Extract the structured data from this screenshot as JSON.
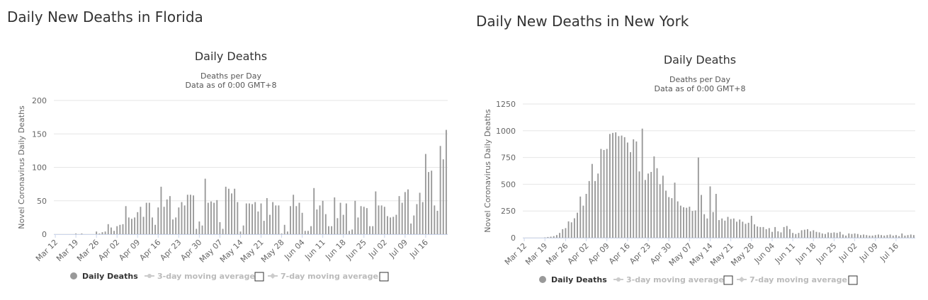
{
  "panels": [
    {
      "heading": "Daily New Deaths in Florida",
      "chart_data": {
        "type": "bar",
        "title": "Daily Deaths",
        "subtitle": [
          "Deaths per Day",
          "Data as of 0:00 GMT+8"
        ],
        "ylabel": "Novel Coronavirus Daily Deaths",
        "xlabel": "",
        "ylim": [
          0,
          200
        ],
        "yticks": [
          0,
          50,
          100,
          150,
          200
        ],
        "start_date": "2020-03-12",
        "xtick_labels": [
          "Mar 12",
          "Mar 19",
          "Mar 26",
          "Apr 02",
          "Apr 09",
          "Apr 16",
          "Apr 23",
          "Apr 30",
          "May 07",
          "May 14",
          "May 21",
          "May 28",
          "Jun 04",
          "Jun 11",
          "Jun 18",
          "Jun 25",
          "Jul 02",
          "Jul 09",
          "Jul 16"
        ],
        "grid": true,
        "series": [
          {
            "name": "Daily Deaths",
            "color": "#999999",
            "values": [
              0,
              0,
              0,
              0,
              0,
              0,
              0,
              1,
              0,
              1,
              0,
              0,
              0,
              0,
              4,
              1,
              3,
              4,
              15,
              10,
              5,
              12,
              14,
              15,
              42,
              25,
              23,
              25,
              33,
              41,
              26,
              47,
              47,
              25,
              14,
              40,
              71,
              41,
              52,
              57,
              22,
              25,
              40,
              48,
              43,
              59,
              59,
              58,
              8,
              19,
              13,
              83,
              47,
              49,
              47,
              51,
              18,
              8,
              71,
              68,
              61,
              68,
              48,
              4,
              13,
              46,
              46,
              45,
              48,
              34,
              46,
              20,
              54,
              29,
              48,
              43,
              43,
              1,
              14,
              4,
              42,
              59,
              42,
              47,
              32,
              5,
              5,
              12,
              69,
              37,
              43,
              50,
              30,
              12,
              12,
              55,
              24,
              47,
              29,
              46,
              5,
              7,
              50,
              25,
              42,
              41,
              39,
              12,
              12,
              64,
              43,
              43,
              41,
              27,
              25,
              26,
              29,
              57,
              47,
              63,
              67,
              16,
              28,
              45,
              62,
              48,
              120,
              93,
              95,
              43,
              35,
              132,
              112,
              156
            ]
          },
          {
            "name": "3-day moving average",
            "color": "#cccccc",
            "visible": false
          },
          {
            "name": "7-day moving average",
            "color": "#cccccc",
            "visible": false
          }
        ]
      }
    },
    {
      "heading": "Daily New Deaths in New York",
      "chart_data": {
        "type": "bar",
        "title": "Daily Deaths",
        "subtitle": [
          "Deaths per Day",
          "Data as of 0:00 GMT+8"
        ],
        "ylabel": "Novel Coronavirus Daily Deaths",
        "xlabel": "",
        "ylim": [
          0,
          1250
        ],
        "yticks": [
          0,
          250,
          500,
          750,
          1000,
          1250
        ],
        "start_date": "2020-03-12",
        "xtick_labels": [
          "Mar 12",
          "Mar 19",
          "Mar 26",
          "Apr 02",
          "Apr 09",
          "Apr 16",
          "Apr 23",
          "Apr 30",
          "May 07",
          "May 14",
          "May 21",
          "May 28",
          "Jun 04",
          "Jun 11",
          "Jun 18",
          "Jun 25",
          "Jul 02",
          "Jul 09",
          "Jul 16"
        ],
        "grid": true,
        "series": [
          {
            "name": "Daily Deaths",
            "color": "#999999",
            "values": [
              0,
              0,
              0,
              0,
              0,
              0,
              0,
              3,
              7,
              10,
              15,
              25,
              45,
              80,
              90,
              153,
              144,
              182,
              234,
              385,
              300,
              410,
              530,
              690,
              530,
              600,
              830,
              820,
              830,
              970,
              980,
              985,
              950,
              955,
              940,
              890,
              800,
              920,
              900,
              620,
              1020,
              540,
              600,
              615,
              760,
              650,
              500,
              580,
              440,
              380,
              370,
              515,
              340,
              300,
              285,
              280,
              290,
              250,
              255,
              750,
              400,
              220,
              180,
              480,
              240,
              410,
              165,
              180,
              160,
              195,
              175,
              180,
              150,
              170,
              150,
              130,
              140,
              205,
              125,
              105,
              100,
              100,
              80,
              90,
              55,
              100,
              60,
              50,
              100,
              110,
              80,
              45,
              35,
              45,
              70,
              75,
              80,
              60,
              70,
              55,
              50,
              40,
              35,
              50,
              45,
              50,
              45,
              55,
              30,
              20,
              40,
              35,
              40,
              35,
              25,
              30,
              25,
              20,
              20,
              25,
              30,
              25,
              20,
              25,
              30,
              20,
              25,
              15,
              40,
              20,
              25,
              30,
              25
            ]
          },
          {
            "name": "3-day moving average",
            "color": "#cccccc",
            "visible": false
          },
          {
            "name": "7-day moving average",
            "color": "#cccccc",
            "visible": false
          }
        ]
      }
    }
  ]
}
